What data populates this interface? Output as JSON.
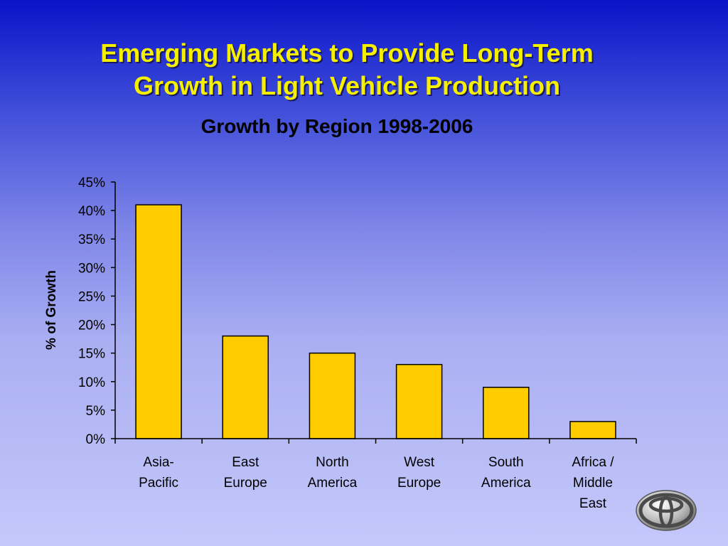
{
  "slide": {
    "title_line1": "Emerging Markets to Provide Long-Term",
    "title_line2": "Growth in Light Vehicle Production"
  },
  "chart_data": {
    "type": "bar",
    "title": "Growth by Region 1998-2006",
    "ylabel": "% of Growth",
    "xlabel": "",
    "ylim": [
      0,
      45
    ],
    "yticks": [
      "0%",
      "5%",
      "10%",
      "15%",
      "20%",
      "25%",
      "30%",
      "35%",
      "40%",
      "45%"
    ],
    "categories": [
      [
        "Asia-",
        "Pacific"
      ],
      [
        "East",
        "Europe"
      ],
      [
        "North",
        "America"
      ],
      [
        "West",
        "Europe"
      ],
      [
        "South",
        "America"
      ],
      [
        "Africa /",
        "Middle",
        "East"
      ]
    ],
    "values": [
      41,
      18,
      15,
      13,
      9,
      3
    ],
    "grid": false,
    "legend": "none",
    "colors": {
      "bar": "#ffcc00",
      "bar_stroke": "#000000"
    }
  },
  "icons": {
    "logo": "toyota-logo-icon"
  }
}
